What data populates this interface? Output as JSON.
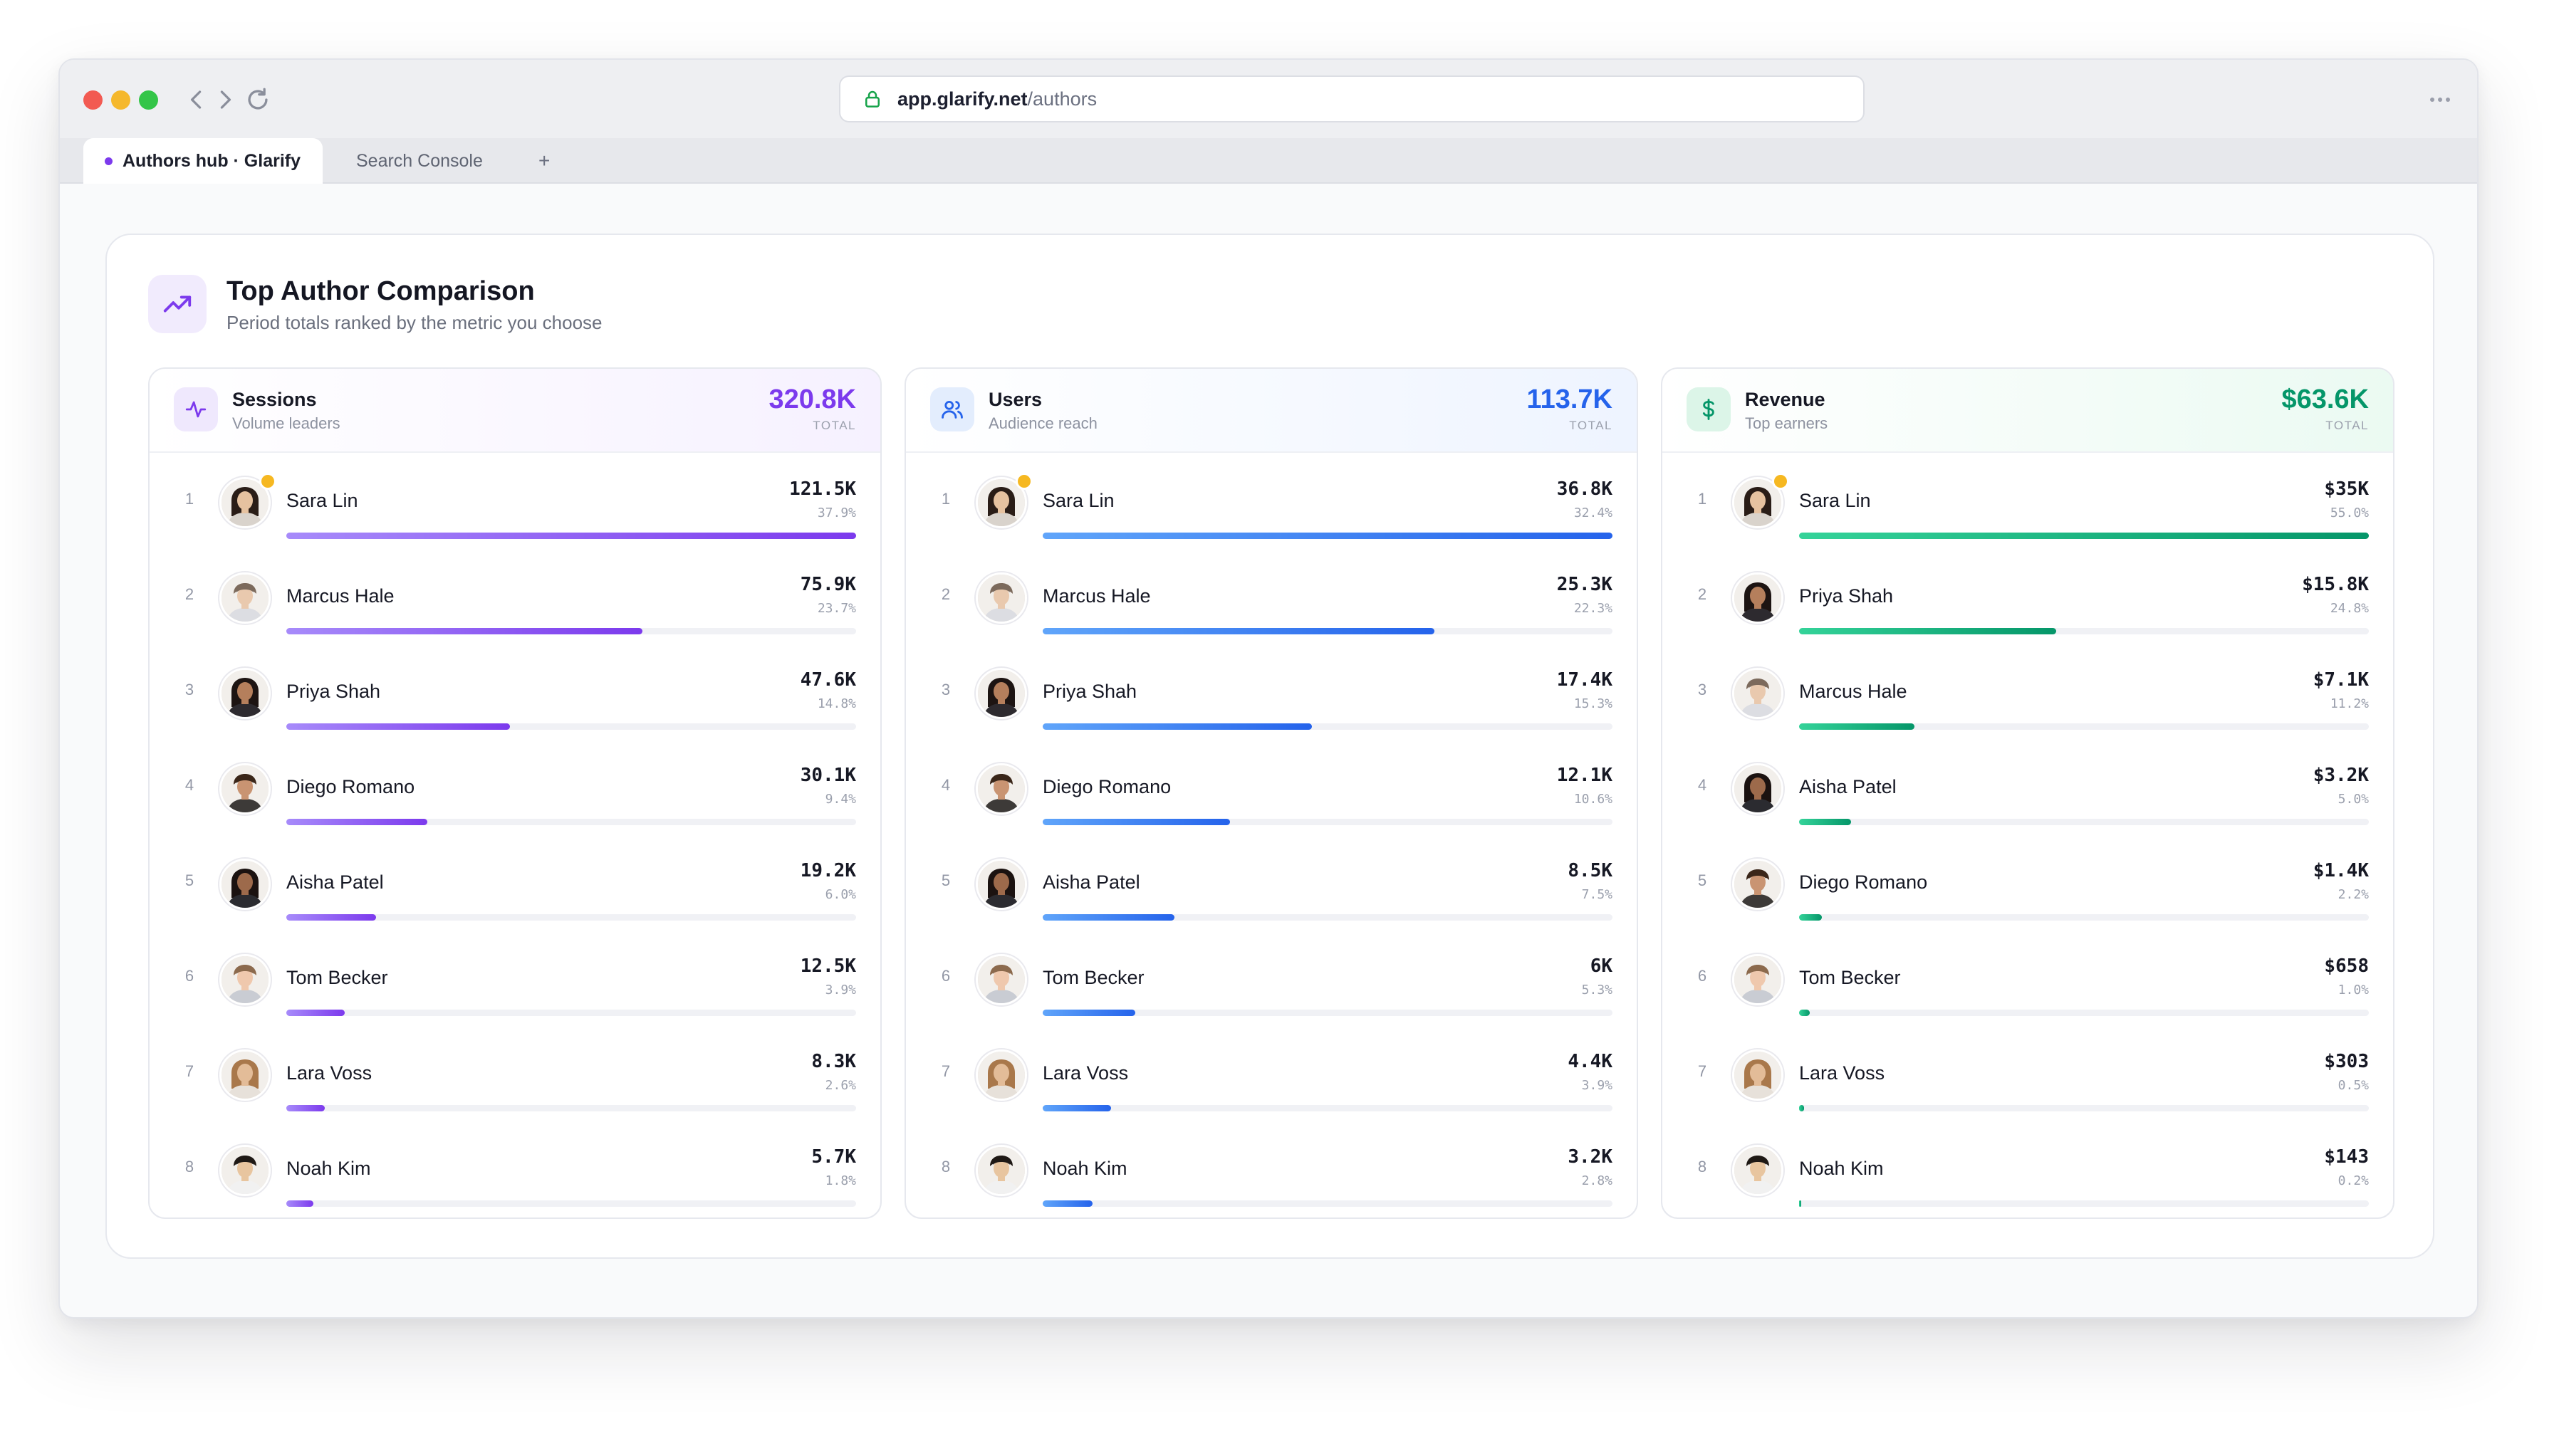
{
  "browser": {
    "url_host": "app.glarify.net",
    "url_path": "/authors",
    "tabs": [
      {
        "label": "Authors hub · Glarify",
        "active": true
      },
      {
        "label": "Search Console",
        "active": false
      }
    ],
    "new_tab_label": "+"
  },
  "panel": {
    "title": "Top Author Comparison",
    "subtitle": "Period totals ranked by the metric you choose",
    "icon": "trending-up-icon"
  },
  "colors": {
    "sessions_accent": "#7c3aed",
    "users_accent": "#2563eb",
    "revenue_accent": "#059669",
    "top_badge": "#f6b821"
  },
  "cards": [
    {
      "key": "sessions",
      "title": "Sessions",
      "subtitle": "Volume leaders",
      "total": "320.8K",
      "total_label": "TOTAL",
      "icon": "activity-icon",
      "rows": [
        {
          "rank": "1",
          "name": "Sara Lin",
          "value": "121.5K",
          "pct": "37.9%",
          "fill": 100,
          "top": true
        },
        {
          "rank": "2",
          "name": "Marcus Hale",
          "value": "75.9K",
          "pct": "23.7%",
          "fill": 62.5
        },
        {
          "rank": "3",
          "name": "Priya Shah",
          "value": "47.6K",
          "pct": "14.8%",
          "fill": 39.2
        },
        {
          "rank": "4",
          "name": "Diego Romano",
          "value": "30.1K",
          "pct": "9.4%",
          "fill": 24.8
        },
        {
          "rank": "5",
          "name": "Aisha Patel",
          "value": "19.2K",
          "pct": "6.0%",
          "fill": 15.8
        },
        {
          "rank": "6",
          "name": "Tom Becker",
          "value": "12.5K",
          "pct": "3.9%",
          "fill": 10.3
        },
        {
          "rank": "7",
          "name": "Lara Voss",
          "value": "8.3K",
          "pct": "2.6%",
          "fill": 6.8
        },
        {
          "rank": "8",
          "name": "Noah Kim",
          "value": "5.7K",
          "pct": "1.8%",
          "fill": 4.7
        }
      ]
    },
    {
      "key": "users",
      "title": "Users",
      "subtitle": "Audience reach",
      "total": "113.7K",
      "total_label": "TOTAL",
      "icon": "users-icon",
      "rows": [
        {
          "rank": "1",
          "name": "Sara Lin",
          "value": "36.8K",
          "pct": "32.4%",
          "fill": 100,
          "top": true
        },
        {
          "rank": "2",
          "name": "Marcus Hale",
          "value": "25.3K",
          "pct": "22.3%",
          "fill": 68.8
        },
        {
          "rank": "3",
          "name": "Priya Shah",
          "value": "17.4K",
          "pct": "15.3%",
          "fill": 47.3
        },
        {
          "rank": "4",
          "name": "Diego Romano",
          "value": "12.1K",
          "pct": "10.6%",
          "fill": 32.9
        },
        {
          "rank": "5",
          "name": "Aisha Patel",
          "value": "8.5K",
          "pct": "7.5%",
          "fill": 23.1
        },
        {
          "rank": "6",
          "name": "Tom Becker",
          "value": "6K",
          "pct": "5.3%",
          "fill": 16.3
        },
        {
          "rank": "7",
          "name": "Lara Voss",
          "value": "4.4K",
          "pct": "3.9%",
          "fill": 12.0
        },
        {
          "rank": "8",
          "name": "Noah Kim",
          "value": "3.2K",
          "pct": "2.8%",
          "fill": 8.7
        }
      ]
    },
    {
      "key": "revenue",
      "title": "Revenue",
      "subtitle": "Top earners",
      "total": "$63.6K",
      "total_label": "TOTAL",
      "icon": "dollar-icon",
      "rows": [
        {
          "rank": "1",
          "name": "Sara Lin",
          "value": "$35K",
          "pct": "55.0%",
          "fill": 100,
          "top": true
        },
        {
          "rank": "2",
          "name": "Priya Shah",
          "value": "$15.8K",
          "pct": "24.8%",
          "fill": 45.1
        },
        {
          "rank": "3",
          "name": "Marcus Hale",
          "value": "$7.1K",
          "pct": "11.2%",
          "fill": 20.3
        },
        {
          "rank": "4",
          "name": "Aisha Patel",
          "value": "$3.2K",
          "pct": "5.0%",
          "fill": 9.1
        },
        {
          "rank": "5",
          "name": "Diego Romano",
          "value": "$1.4K",
          "pct": "2.2%",
          "fill": 4.0
        },
        {
          "rank": "6",
          "name": "Tom Becker",
          "value": "$658",
          "pct": "1.0%",
          "fill": 1.9
        },
        {
          "rank": "7",
          "name": "Lara Voss",
          "value": "$303",
          "pct": "0.5%",
          "fill": 0.9
        },
        {
          "rank": "8",
          "name": "Noah Kim",
          "value": "$143",
          "pct": "0.2%",
          "fill": 0.4
        }
      ]
    }
  ]
}
